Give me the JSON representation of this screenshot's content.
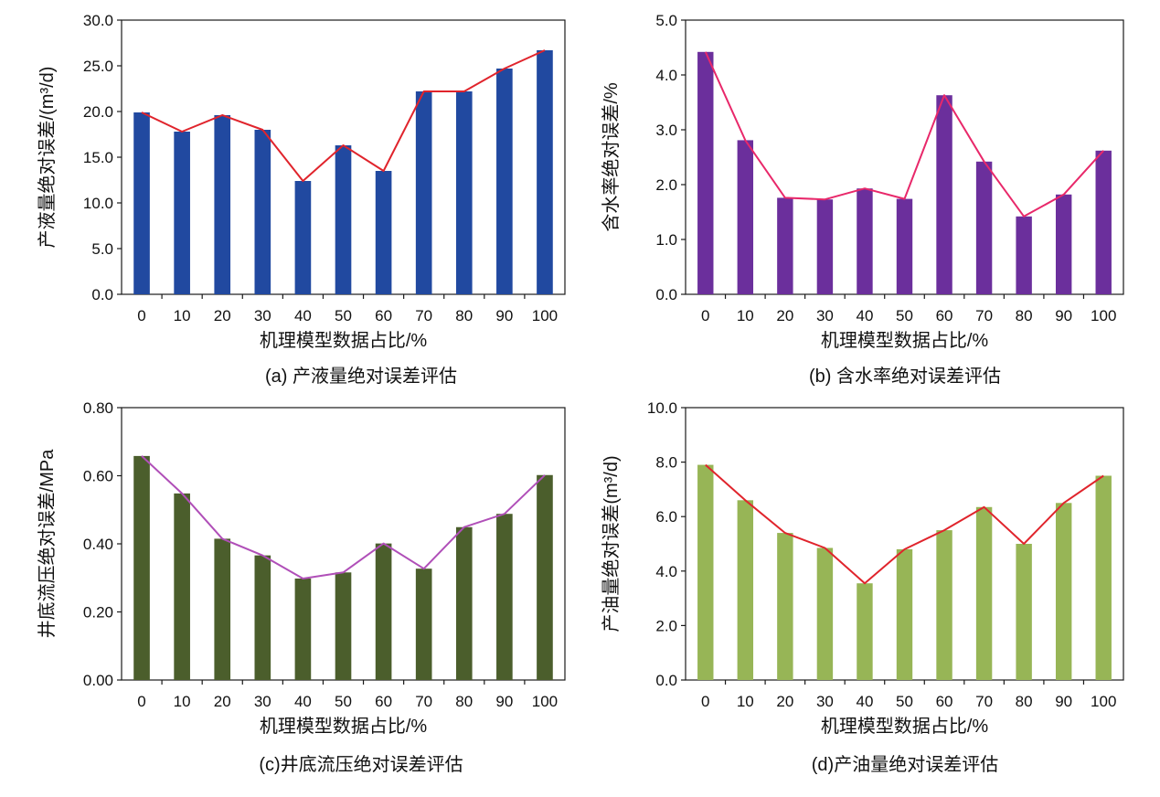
{
  "figure": {
    "panels": [
      {
        "caption": "(a) 产液量绝对误差评估"
      },
      {
        "caption": "(b) 含水率绝对误差评估"
      },
      {
        "caption": "(c)井底流压绝对误差评估"
      },
      {
        "caption": "(d)产油量绝对误差评估"
      }
    ]
  },
  "chart_data": [
    {
      "type": "bar",
      "panel": "a",
      "caption": "(a) 产液量绝对误差评估",
      "xlabel": "机理模型数据占比/%",
      "ylabel": "产液量绝对误差/(m³/d)",
      "categories": [
        "0",
        "10",
        "20",
        "30",
        "40",
        "50",
        "60",
        "70",
        "80",
        "90",
        "100"
      ],
      "values": [
        19.9,
        17.8,
        19.6,
        18.0,
        12.4,
        16.3,
        13.5,
        22.2,
        22.2,
        24.7,
        26.7
      ],
      "line_values": [
        19.9,
        17.8,
        19.6,
        18.0,
        12.4,
        16.3,
        13.5,
        22.2,
        22.2,
        24.7,
        26.7
      ],
      "ylim": [
        0,
        30
      ],
      "yticks": [
        0,
        5,
        10,
        15,
        20,
        25,
        30
      ],
      "ytick_labels": [
        "0.0",
        "5.0",
        "10.0",
        "15.0",
        "20.0",
        "25.0",
        "30.0"
      ],
      "bar_color": "#2149a0",
      "line_color": "#e0242c"
    },
    {
      "type": "bar",
      "panel": "b",
      "caption": "(b) 含水率绝对误差评估",
      "xlabel": "机理模型数据占比/%",
      "ylabel": "含水率绝对误差/%",
      "categories": [
        "0",
        "10",
        "20",
        "30",
        "40",
        "50",
        "60",
        "70",
        "80",
        "90",
        "100"
      ],
      "values": [
        4.42,
        2.81,
        1.76,
        1.73,
        1.93,
        1.74,
        3.63,
        2.42,
        1.42,
        1.82,
        2.62
      ],
      "line_values": [
        4.42,
        2.81,
        1.76,
        1.73,
        1.93,
        1.74,
        3.63,
        2.42,
        1.42,
        1.82,
        2.62
      ],
      "ylim": [
        0,
        5
      ],
      "yticks": [
        0,
        1,
        2,
        3,
        4,
        5
      ],
      "ytick_labels": [
        "0.0",
        "1.0",
        "2.0",
        "3.0",
        "4.0",
        "5.0"
      ],
      "bar_color": "#6b2f9c",
      "line_color": "#e8286a"
    },
    {
      "type": "bar",
      "panel": "c",
      "caption": "(c)井底流压绝对误差评估",
      "xlabel": "机理模型数据占比/%",
      "ylabel": "井底流压绝对误差/MPa",
      "categories": [
        "0",
        "10",
        "20",
        "30",
        "40",
        "50",
        "60",
        "70",
        "80",
        "90",
        "100"
      ],
      "values": [
        0.658,
        0.548,
        0.415,
        0.366,
        0.298,
        0.316,
        0.401,
        0.327,
        0.449,
        0.488,
        0.602
      ],
      "line_values": [
        0.658,
        0.548,
        0.415,
        0.366,
        0.298,
        0.316,
        0.401,
        0.327,
        0.449,
        0.488,
        0.602
      ],
      "ylim": [
        0,
        0.8
      ],
      "yticks": [
        0,
        0.2,
        0.4,
        0.6,
        0.8
      ],
      "ytick_labels": [
        "0.00",
        "0.20",
        "0.40",
        "0.60",
        "0.80"
      ],
      "bar_color": "#4b5e2c",
      "line_color": "#b04fb8"
    },
    {
      "type": "bar",
      "panel": "d",
      "caption": "(d)产油量绝对误差评估",
      "xlabel": "机理模型数据占比/%",
      "ylabel": "产油量绝对误差(m³/d)",
      "categories": [
        "0",
        "10",
        "20",
        "30",
        "40",
        "50",
        "60",
        "70",
        "80",
        "90",
        "100"
      ],
      "values": [
        7.9,
        6.6,
        5.4,
        4.85,
        3.55,
        4.8,
        5.5,
        6.35,
        5.0,
        6.5,
        7.5
      ],
      "line_values": [
        7.9,
        6.6,
        5.4,
        4.85,
        3.55,
        4.8,
        5.5,
        6.35,
        5.0,
        6.5,
        7.5
      ],
      "ylim": [
        0,
        10
      ],
      "yticks": [
        0,
        2,
        4,
        6,
        8,
        10
      ],
      "ytick_labels": [
        "0.0",
        "2.0",
        "4.0",
        "6.0",
        "8.0",
        "10.0"
      ],
      "bar_color": "#97b556",
      "line_color": "#e0242c"
    }
  ]
}
